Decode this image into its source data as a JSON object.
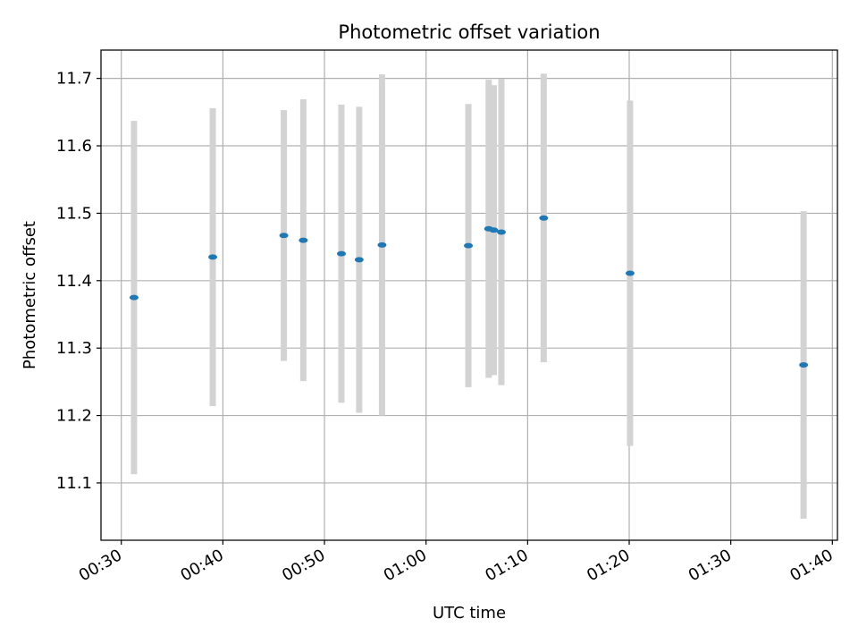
{
  "chart_data": {
    "type": "scatter",
    "title": "Photometric offset variation",
    "xlabel": "UTC time",
    "ylabel": "Photometric offset",
    "x_tick_labels": [
      "00:30",
      "00:40",
      "00:50",
      "01:00",
      "01:10",
      "01:20",
      "01:30",
      "01:40"
    ],
    "y_tick_labels": [
      "11.1",
      "11.2",
      "11.3",
      "11.4",
      "11.5",
      "11.6",
      "11.7"
    ],
    "xlim": [
      "00:28",
      "01:40:30"
    ],
    "ylim": [
      11.015,
      11.742
    ],
    "grid": true,
    "colors": {
      "points": "#1f77b4",
      "errorbars": "#d3d3d3",
      "grid": "#b0b0b0"
    },
    "series": [
      {
        "points": [
          {
            "x": "00:31:15",
            "y": 11.375,
            "err": 0.262
          },
          {
            "x": "00:39:00",
            "y": 11.435,
            "err": 0.221
          },
          {
            "x": "00:46:00",
            "y": 11.467,
            "err": 0.186
          },
          {
            "x": "00:47:55",
            "y": 11.46,
            "err": 0.209
          },
          {
            "x": "00:51:40",
            "y": 11.44,
            "err": 0.221
          },
          {
            "x": "00:53:25",
            "y": 11.431,
            "err": 0.227
          },
          {
            "x": "00:55:40",
            "y": 11.453,
            "err": 0.253
          },
          {
            "x": "01:04:10",
            "y": 11.452,
            "err": 0.21
          },
          {
            "x": "01:06:10",
            "y": 11.477,
            "err": 0.221
          },
          {
            "x": "01:06:40",
            "y": 11.475,
            "err": 0.215
          },
          {
            "x": "01:07:25",
            "y": 11.472,
            "err": 0.227
          },
          {
            "x": "01:11:35",
            "y": 11.493,
            "err": 0.214
          },
          {
            "x": "01:20:05",
            "y": 11.411,
            "err": 0.256
          },
          {
            "x": "01:37:10",
            "y": 11.275,
            "err": 0.228
          }
        ]
      }
    ]
  }
}
